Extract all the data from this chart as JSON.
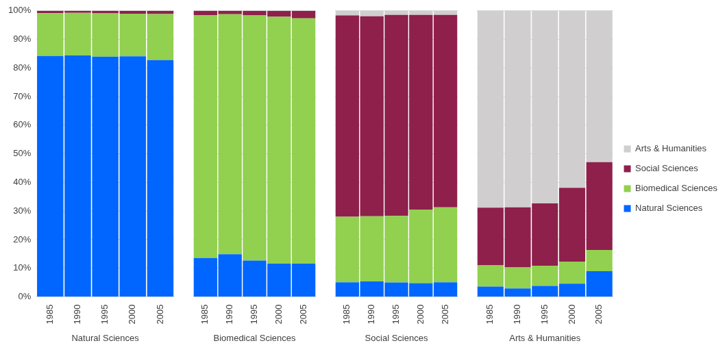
{
  "chart_data": [
    {
      "type": "bar",
      "stacked": true,
      "xlabel": "Natural Sciences",
      "categories": [
        "1985",
        "1990",
        "1995",
        "2000",
        "2005"
      ],
      "ylim": [
        0,
        100
      ],
      "yticks": [
        {
          "value": 0,
          "label": "0%"
        },
        {
          "value": 10,
          "label": "10%"
        },
        {
          "value": 20,
          "label": "20%"
        },
        {
          "value": 30,
          "label": "30%"
        },
        {
          "value": 40,
          "label": "40%"
        },
        {
          "value": 50,
          "label": "50%"
        },
        {
          "value": 60,
          "label": "60%"
        },
        {
          "value": 70,
          "label": "70%"
        },
        {
          "value": 80,
          "label": "80%"
        },
        {
          "value": 90,
          "label": "90%"
        },
        {
          "value": 100,
          "label": "100%"
        }
      ],
      "grid": "y",
      "legend": false,
      "series": [
        {
          "color": "#0066ff",
          "values": [
            84.2,
            84.4,
            84.0,
            84.1,
            82.8
          ]
        },
        {
          "color": "#92d050",
          "values": [
            15.0,
            14.9,
            15.1,
            14.9,
            16.1
          ]
        },
        {
          "color": "#8e204b",
          "values": [
            0.8,
            0.7,
            0.9,
            1.0,
            1.1
          ]
        },
        {
          "color": "#d0cece",
          "values": [
            null,
            null,
            null,
            null,
            null
          ]
        }
      ]
    },
    {
      "type": "bar",
      "stacked": true,
      "xlabel": "Biomedical Sciences",
      "categories": [
        "1985",
        "1990",
        "1995",
        "2000",
        "2005"
      ],
      "ylim": [
        0,
        100
      ],
      "yticks": [
        0,
        10,
        20,
        30,
        40,
        50,
        60,
        70,
        80,
        90,
        100
      ],
      "tick_labels": "x",
      "grid": "y",
      "legend": false,
      "series": [
        {
          "color": "#0066ff",
          "values": [
            13.6,
            14.9,
            12.7,
            11.6,
            11.6
          ]
        },
        {
          "color": "#92d050",
          "values": [
            84.9,
            83.9,
            85.7,
            86.3,
            85.8
          ]
        },
        {
          "color": "#8e204b",
          "values": [
            1.5,
            1.2,
            1.6,
            2.1,
            2.6
          ]
        },
        {
          "color": "#d0cece",
          "values": [
            null,
            null,
            null,
            null,
            null
          ]
        }
      ]
    },
    {
      "type": "bar",
      "stacked": true,
      "xlabel": "Social Sciences",
      "categories": [
        "1985",
        "1990",
        "1995",
        "2000",
        "2005"
      ],
      "ylim": [
        0,
        100
      ],
      "yticks": [
        0,
        10,
        20,
        30,
        40,
        50,
        60,
        70,
        80,
        90,
        100
      ],
      "tick_labels": "x",
      "grid": "y",
      "legend": false,
      "series": [
        {
          "color": "#0066ff",
          "values": [
            5.1,
            5.4,
            5.0,
            4.8,
            5.1
          ]
        },
        {
          "color": "#92d050",
          "values": [
            22.9,
            22.8,
            23.3,
            25.7,
            26.2
          ]
        },
        {
          "color": "#8e204b",
          "values": [
            70.4,
            69.9,
            70.3,
            68.1,
            67.3
          ]
        },
        {
          "color": "#d0cece",
          "values": [
            1.6,
            1.9,
            1.4,
            1.4,
            1.4
          ]
        }
      ]
    },
    {
      "type": "bar",
      "stacked": true,
      "xlabel": "Arts & Humanities",
      "categories": [
        "1985",
        "1990",
        "1995",
        "2000",
        "2005"
      ],
      "ylim": [
        0,
        100
      ],
      "yticks": [
        0,
        10,
        20,
        30,
        40,
        50,
        60,
        70,
        80,
        90,
        100
      ],
      "tick_labels": "x",
      "grid": "y",
      "legend": "right",
      "series": [
        {
          "name": "Natural Sciences",
          "color": "#0066ff",
          "values": [
            3.6,
            2.9,
            3.8,
            4.6,
            9.0
          ]
        },
        {
          "name": "Biomedical Sciences",
          "color": "#92d050",
          "values": [
            7.4,
            7.4,
            7.1,
            7.7,
            7.4
          ]
        },
        {
          "name": "Social Sciences",
          "color": "#8e204b",
          "values": [
            20.2,
            21.0,
            21.8,
            25.8,
            30.7
          ]
        },
        {
          "name": "Arts & Humanities",
          "color": "#d0cece",
          "values": [
            68.8,
            68.7,
            67.3,
            61.9,
            52.9
          ]
        }
      ]
    }
  ]
}
